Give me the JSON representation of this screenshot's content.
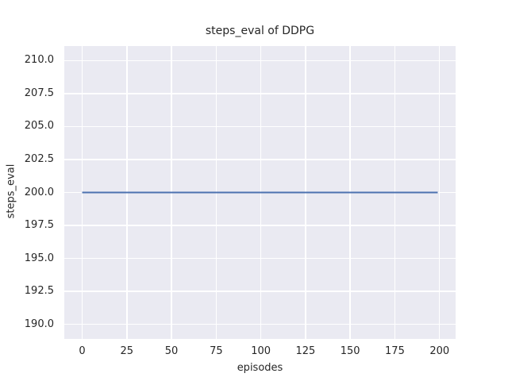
{
  "chart_data": {
    "type": "line",
    "title": "steps_eval of DDPG",
    "xlabel": "episodes",
    "ylabel": "steps_eval",
    "x_ticks": [
      0,
      25,
      50,
      75,
      100,
      125,
      150,
      175,
      200
    ],
    "x_tick_labels": [
      "0",
      "25",
      "50",
      "75",
      "100",
      "125",
      "150",
      "175",
      "200"
    ],
    "y_ticks": [
      190.0,
      192.5,
      195.0,
      197.5,
      200.0,
      202.5,
      205.0,
      207.5,
      210.0
    ],
    "y_tick_labels": [
      "190.0",
      "192.5",
      "195.0",
      "197.5",
      "200.0",
      "202.5",
      "205.0",
      "207.5",
      "210.0"
    ],
    "xlim": [
      -10,
      209
    ],
    "ylim": [
      188.9,
      211.1
    ],
    "grid": true,
    "legend_position": "none",
    "plot_background": "#eaeaf2",
    "grid_color": "#ffffff",
    "text_color": "#262626",
    "series": [
      {
        "name": "DDPG steps_eval",
        "color": "#4c72b0",
        "line_width": 2,
        "x": [
          0,
          199
        ],
        "y": [
          200.0,
          200.0
        ]
      }
    ]
  }
}
